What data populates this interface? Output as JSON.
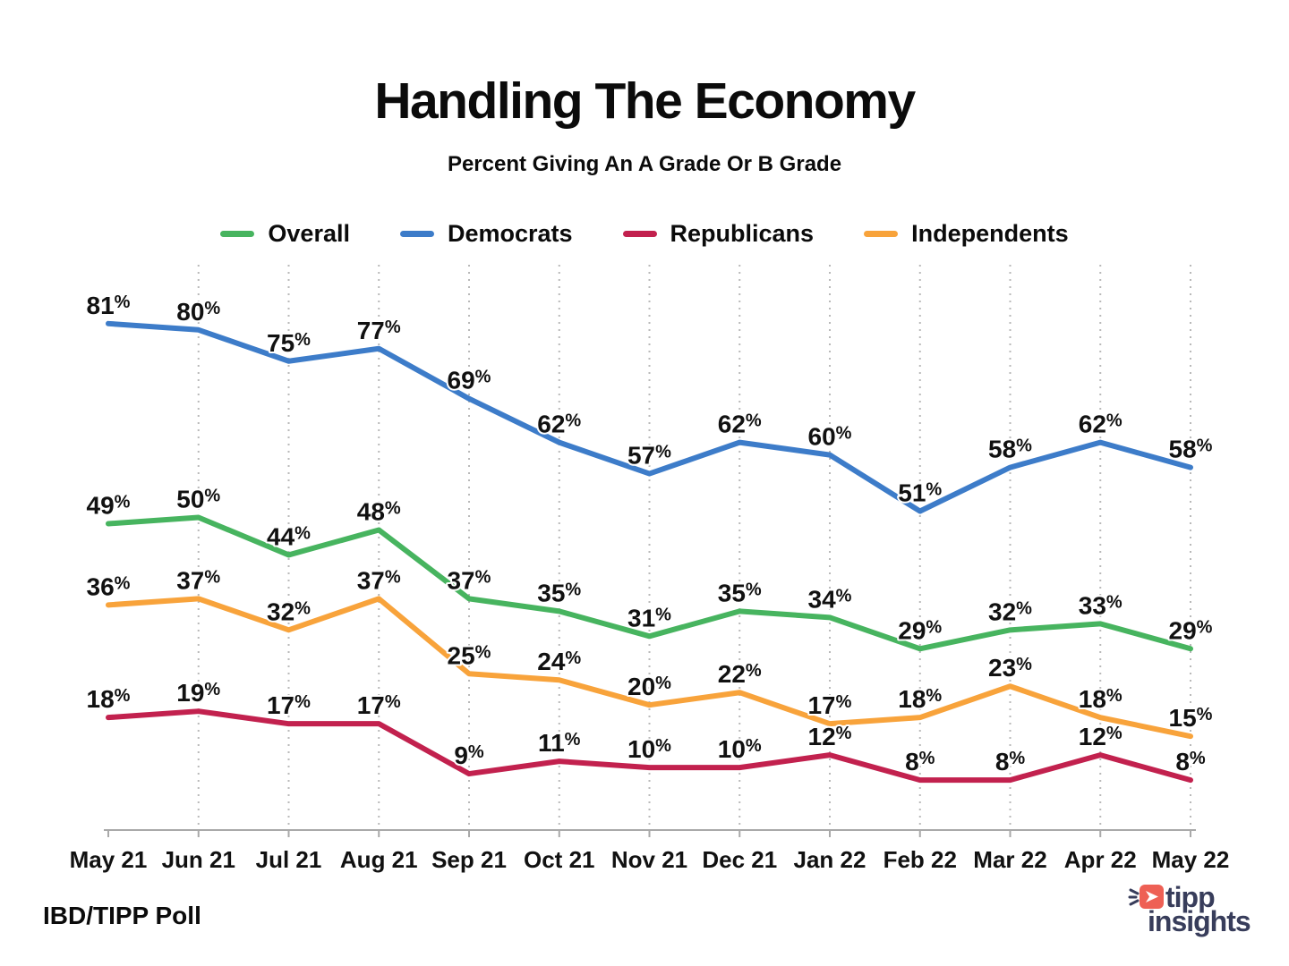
{
  "header": {
    "title": "Handling The Economy",
    "subtitle": "Percent Giving An A Grade Or B Grade"
  },
  "chart_data": {
    "type": "line",
    "title": "Handling The Economy",
    "subtitle": "Percent Giving An A Grade Or B Grade",
    "unit": "%",
    "x_categories": [
      "May 21",
      "Jun 21",
      "Jul 21",
      "Aug 21",
      "Sep 21",
      "Oct 21",
      "Nov 21",
      "Dec 21",
      "Jan 22",
      "Feb 22",
      "Mar 22",
      "Apr 22",
      "May 22"
    ],
    "series": [
      {
        "name": "Overall",
        "color": "#47B45F",
        "values": [
          49,
          50,
          44,
          48,
          37,
          35,
          31,
          35,
          34,
          29,
          32,
          33,
          29
        ]
      },
      {
        "name": "Democrats",
        "color": "#3D7CC9",
        "values": [
          81,
          80,
          75,
          77,
          69,
          62,
          57,
          62,
          60,
          51,
          58,
          62,
          58
        ]
      },
      {
        "name": "Republicans",
        "color": "#C2214E",
        "values": [
          18,
          19,
          17,
          17,
          9,
          11,
          10,
          10,
          12,
          8,
          8,
          12,
          8
        ]
      },
      {
        "name": "Independents",
        "color": "#F8A33B",
        "values": [
          36,
          37,
          32,
          37,
          25,
          24,
          20,
          22,
          17,
          18,
          23,
          18,
          15
        ]
      }
    ],
    "ylim": [
      0,
      100
    ],
    "grid": "vertical-dotted",
    "legend_position": "top",
    "data_labels": true,
    "axis_color": "#a9a9a9",
    "gridline_color": "#b9b9b9",
    "label_color": "#111111"
  },
  "footer": {
    "source": "IBD/TIPP Poll",
    "brand": {
      "line1": "tipp",
      "line2": "insights"
    }
  }
}
